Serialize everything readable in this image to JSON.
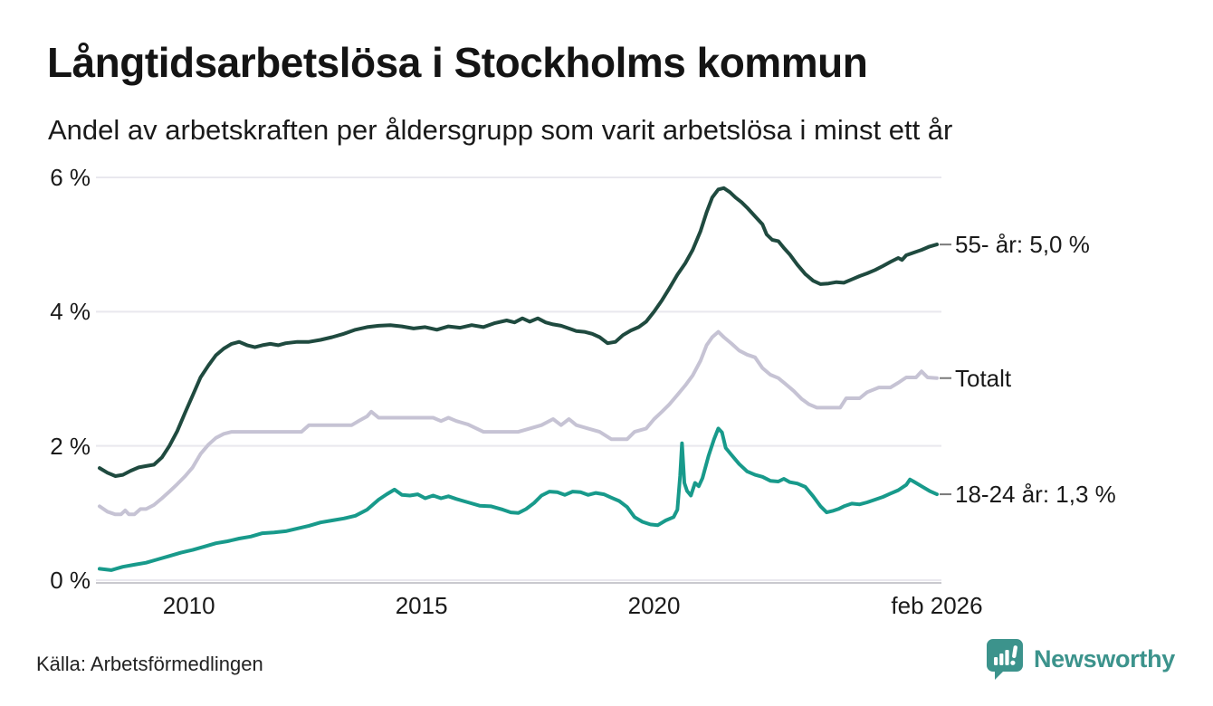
{
  "header": {
    "title": "Långtidsarbetslösa i Stockholms kommun",
    "subtitle": "Andel av arbetskraften per åldersgrupp som varit arbetslösa i minst ett år"
  },
  "chart_data": {
    "type": "line",
    "unit": "%",
    "xlim": [
      2008.08,
      2026.08
    ],
    "ylim": [
      0,
      6.2
    ],
    "grid": "horizontal",
    "grid_color": "#e9e8ee",
    "axis_line_color": "#c9c9ce",
    "label_dash_color": "#7a7a7a",
    "y_ticks": [
      {
        "label": "0 %",
        "value": 0
      },
      {
        "label": "2 %",
        "value": 2
      },
      {
        "label": "4 %",
        "value": 4
      },
      {
        "label": "6 %",
        "value": 6
      }
    ],
    "x_ticks": [
      {
        "label": "2010",
        "year": 2010
      },
      {
        "label": "2015",
        "year": 2015
      },
      {
        "label": "2020",
        "year": 2020
      },
      {
        "label": "feb 2026",
        "year": 2026.08
      }
    ],
    "series": [
      {
        "name": "55- år",
        "end_label": "55- år: 5,0 %",
        "latest_value": "5,0 %",
        "color": "#1f4a3f",
        "points": [
          [
            2008.08,
            1.67
          ],
          [
            2008.25,
            1.6
          ],
          [
            2008.42,
            1.55
          ],
          [
            2008.58,
            1.57
          ],
          [
            2008.75,
            1.63
          ],
          [
            2008.92,
            1.68
          ],
          [
            2009.08,
            1.7
          ],
          [
            2009.25,
            1.72
          ],
          [
            2009.42,
            1.83
          ],
          [
            2009.58,
            2.0
          ],
          [
            2009.75,
            2.22
          ],
          [
            2009.92,
            2.5
          ],
          [
            2010.08,
            2.75
          ],
          [
            2010.25,
            3.02
          ],
          [
            2010.42,
            3.2
          ],
          [
            2010.58,
            3.35
          ],
          [
            2010.75,
            3.45
          ],
          [
            2010.92,
            3.52
          ],
          [
            2011.08,
            3.55
          ],
          [
            2011.25,
            3.5
          ],
          [
            2011.42,
            3.47
          ],
          [
            2011.58,
            3.5
          ],
          [
            2011.75,
            3.52
          ],
          [
            2011.92,
            3.5
          ],
          [
            2012.08,
            3.53
          ],
          [
            2012.33,
            3.55
          ],
          [
            2012.58,
            3.55
          ],
          [
            2012.83,
            3.58
          ],
          [
            2013.08,
            3.62
          ],
          [
            2013.33,
            3.67
          ],
          [
            2013.58,
            3.73
          ],
          [
            2013.83,
            3.77
          ],
          [
            2014.08,
            3.79
          ],
          [
            2014.33,
            3.8
          ],
          [
            2014.58,
            3.78
          ],
          [
            2014.83,
            3.75
          ],
          [
            2015.08,
            3.77
          ],
          [
            2015.33,
            3.73
          ],
          [
            2015.58,
            3.78
          ],
          [
            2015.83,
            3.76
          ],
          [
            2016.08,
            3.8
          ],
          [
            2016.33,
            3.77
          ],
          [
            2016.58,
            3.83
          ],
          [
            2016.83,
            3.87
          ],
          [
            2017.0,
            3.84
          ],
          [
            2017.17,
            3.9
          ],
          [
            2017.33,
            3.85
          ],
          [
            2017.5,
            3.9
          ],
          [
            2017.67,
            3.84
          ],
          [
            2017.83,
            3.81
          ],
          [
            2018.0,
            3.79
          ],
          [
            2018.17,
            3.75
          ],
          [
            2018.33,
            3.71
          ],
          [
            2018.5,
            3.7
          ],
          [
            2018.67,
            3.67
          ],
          [
            2018.83,
            3.62
          ],
          [
            2019.0,
            3.53
          ],
          [
            2019.17,
            3.55
          ],
          [
            2019.33,
            3.65
          ],
          [
            2019.5,
            3.72
          ],
          [
            2019.67,
            3.77
          ],
          [
            2019.83,
            3.85
          ],
          [
            2020.0,
            4.0
          ],
          [
            2020.17,
            4.17
          ],
          [
            2020.33,
            4.35
          ],
          [
            2020.5,
            4.55
          ],
          [
            2020.67,
            4.72
          ],
          [
            2020.83,
            4.92
          ],
          [
            2021.0,
            5.2
          ],
          [
            2021.13,
            5.48
          ],
          [
            2021.25,
            5.7
          ],
          [
            2021.38,
            5.82
          ],
          [
            2021.5,
            5.84
          ],
          [
            2021.63,
            5.78
          ],
          [
            2021.75,
            5.7
          ],
          [
            2021.88,
            5.63
          ],
          [
            2022.0,
            5.55
          ],
          [
            2022.17,
            5.42
          ],
          [
            2022.33,
            5.3
          ],
          [
            2022.42,
            5.15
          ],
          [
            2022.54,
            5.07
          ],
          [
            2022.67,
            5.05
          ],
          [
            2022.79,
            4.95
          ],
          [
            2022.92,
            4.85
          ],
          [
            2023.08,
            4.7
          ],
          [
            2023.25,
            4.56
          ],
          [
            2023.42,
            4.46
          ],
          [
            2023.58,
            4.41
          ],
          [
            2023.75,
            4.42
          ],
          [
            2023.92,
            4.44
          ],
          [
            2024.08,
            4.43
          ],
          [
            2024.25,
            4.48
          ],
          [
            2024.42,
            4.53
          ],
          [
            2024.58,
            4.57
          ],
          [
            2024.75,
            4.62
          ],
          [
            2024.92,
            4.68
          ],
          [
            2025.08,
            4.74
          ],
          [
            2025.25,
            4.8
          ],
          [
            2025.33,
            4.77
          ],
          [
            2025.42,
            4.84
          ],
          [
            2025.58,
            4.88
          ],
          [
            2025.75,
            4.92
          ],
          [
            2025.92,
            4.97
          ],
          [
            2026.08,
            5.0
          ]
        ]
      },
      {
        "name": "Totalt",
        "end_label": "Totalt",
        "latest_value": "3,0 %",
        "color": "#c6c3d4",
        "points": [
          [
            2008.08,
            1.1
          ],
          [
            2008.25,
            1.02
          ],
          [
            2008.42,
            0.98
          ],
          [
            2008.54,
            0.98
          ],
          [
            2008.63,
            1.04
          ],
          [
            2008.71,
            0.98
          ],
          [
            2008.83,
            0.98
          ],
          [
            2008.96,
            1.06
          ],
          [
            2009.08,
            1.06
          ],
          [
            2009.25,
            1.12
          ],
          [
            2009.42,
            1.22
          ],
          [
            2009.58,
            1.32
          ],
          [
            2009.75,
            1.43
          ],
          [
            2009.92,
            1.55
          ],
          [
            2010.08,
            1.68
          ],
          [
            2010.25,
            1.88
          ],
          [
            2010.42,
            2.02
          ],
          [
            2010.58,
            2.12
          ],
          [
            2010.75,
            2.18
          ],
          [
            2010.92,
            2.21
          ],
          [
            2011.5,
            2.21
          ],
          [
            2012.42,
            2.21
          ],
          [
            2012.58,
            2.31
          ],
          [
            2013.5,
            2.31
          ],
          [
            2013.67,
            2.38
          ],
          [
            2013.83,
            2.44
          ],
          [
            2013.92,
            2.51
          ],
          [
            2014.08,
            2.42
          ],
          [
            2015.25,
            2.42
          ],
          [
            2015.42,
            2.37
          ],
          [
            2015.58,
            2.42
          ],
          [
            2015.75,
            2.37
          ],
          [
            2016.0,
            2.32
          ],
          [
            2016.33,
            2.21
          ],
          [
            2017.08,
            2.21
          ],
          [
            2017.33,
            2.26
          ],
          [
            2017.58,
            2.31
          ],
          [
            2017.83,
            2.4
          ],
          [
            2018.0,
            2.31
          ],
          [
            2018.17,
            2.4
          ],
          [
            2018.33,
            2.31
          ],
          [
            2018.58,
            2.26
          ],
          [
            2018.83,
            2.21
          ],
          [
            2019.08,
            2.1
          ],
          [
            2019.42,
            2.1
          ],
          [
            2019.58,
            2.21
          ],
          [
            2019.83,
            2.26
          ],
          [
            2020.0,
            2.4
          ],
          [
            2020.17,
            2.51
          ],
          [
            2020.33,
            2.62
          ],
          [
            2020.5,
            2.76
          ],
          [
            2020.67,
            2.9
          ],
          [
            2020.83,
            3.05
          ],
          [
            2021.0,
            3.27
          ],
          [
            2021.13,
            3.5
          ],
          [
            2021.25,
            3.62
          ],
          [
            2021.38,
            3.7
          ],
          [
            2021.5,
            3.62
          ],
          [
            2021.67,
            3.52
          ],
          [
            2021.83,
            3.42
          ],
          [
            2022.0,
            3.36
          ],
          [
            2022.17,
            3.32
          ],
          [
            2022.33,
            3.16
          ],
          [
            2022.5,
            3.06
          ],
          [
            2022.67,
            3.01
          ],
          [
            2022.83,
            2.92
          ],
          [
            2023.0,
            2.82
          ],
          [
            2023.17,
            2.7
          ],
          [
            2023.33,
            2.62
          ],
          [
            2023.5,
            2.57
          ],
          [
            2024.0,
            2.57
          ],
          [
            2024.13,
            2.71
          ],
          [
            2024.42,
            2.71
          ],
          [
            2024.58,
            2.8
          ],
          [
            2024.83,
            2.87
          ],
          [
            2025.08,
            2.87
          ],
          [
            2025.25,
            2.94
          ],
          [
            2025.42,
            3.02
          ],
          [
            2025.63,
            3.02
          ],
          [
            2025.75,
            3.11
          ],
          [
            2025.88,
            3.02
          ],
          [
            2026.08,
            3.01
          ]
        ]
      },
      {
        "name": "18-24 år",
        "end_label": "18-24 år: 1,3 %",
        "latest_value": "1,3 %",
        "color": "#189a8b",
        "points": [
          [
            2008.08,
            0.17
          ],
          [
            2008.33,
            0.15
          ],
          [
            2008.58,
            0.2
          ],
          [
            2008.83,
            0.23
          ],
          [
            2009.08,
            0.26
          ],
          [
            2009.33,
            0.31
          ],
          [
            2009.58,
            0.36
          ],
          [
            2009.83,
            0.41
          ],
          [
            2010.08,
            0.45
          ],
          [
            2010.33,
            0.5
          ],
          [
            2010.58,
            0.55
          ],
          [
            2010.83,
            0.58
          ],
          [
            2011.08,
            0.62
          ],
          [
            2011.33,
            0.65
          ],
          [
            2011.58,
            0.7
          ],
          [
            2011.83,
            0.71
          ],
          [
            2012.08,
            0.73
          ],
          [
            2012.33,
            0.77
          ],
          [
            2012.58,
            0.81
          ],
          [
            2012.83,
            0.86
          ],
          [
            2013.08,
            0.89
          ],
          [
            2013.33,
            0.92
          ],
          [
            2013.58,
            0.96
          ],
          [
            2013.83,
            1.05
          ],
          [
            2014.08,
            1.2
          ],
          [
            2014.25,
            1.28
          ],
          [
            2014.42,
            1.35
          ],
          [
            2014.58,
            1.27
          ],
          [
            2014.75,
            1.26
          ],
          [
            2014.92,
            1.28
          ],
          [
            2015.08,
            1.22
          ],
          [
            2015.25,
            1.26
          ],
          [
            2015.42,
            1.22
          ],
          [
            2015.58,
            1.25
          ],
          [
            2015.75,
            1.21
          ],
          [
            2016.0,
            1.16
          ],
          [
            2016.25,
            1.11
          ],
          [
            2016.5,
            1.1
          ],
          [
            2016.75,
            1.05
          ],
          [
            2016.92,
            1.01
          ],
          [
            2017.08,
            1.0
          ],
          [
            2017.25,
            1.06
          ],
          [
            2017.42,
            1.15
          ],
          [
            2017.58,
            1.26
          ],
          [
            2017.75,
            1.32
          ],
          [
            2017.92,
            1.31
          ],
          [
            2018.08,
            1.27
          ],
          [
            2018.25,
            1.32
          ],
          [
            2018.42,
            1.31
          ],
          [
            2018.58,
            1.27
          ],
          [
            2018.75,
            1.3
          ],
          [
            2018.92,
            1.28
          ],
          [
            2019.08,
            1.23
          ],
          [
            2019.25,
            1.18
          ],
          [
            2019.42,
            1.09
          ],
          [
            2019.58,
            0.94
          ],
          [
            2019.75,
            0.87
          ],
          [
            2019.92,
            0.83
          ],
          [
            2020.08,
            0.82
          ],
          [
            2020.25,
            0.89
          ],
          [
            2020.42,
            0.94
          ],
          [
            2020.5,
            1.05
          ],
          [
            2020.56,
            1.55
          ],
          [
            2020.6,
            2.04
          ],
          [
            2020.65,
            1.45
          ],
          [
            2020.71,
            1.33
          ],
          [
            2020.79,
            1.26
          ],
          [
            2020.88,
            1.45
          ],
          [
            2020.96,
            1.4
          ],
          [
            2021.04,
            1.52
          ],
          [
            2021.17,
            1.85
          ],
          [
            2021.29,
            2.1
          ],
          [
            2021.38,
            2.26
          ],
          [
            2021.46,
            2.2
          ],
          [
            2021.54,
            1.97
          ],
          [
            2021.67,
            1.86
          ],
          [
            2021.83,
            1.73
          ],
          [
            2022.0,
            1.62
          ],
          [
            2022.17,
            1.57
          ],
          [
            2022.33,
            1.54
          ],
          [
            2022.5,
            1.48
          ],
          [
            2022.67,
            1.47
          ],
          [
            2022.79,
            1.51
          ],
          [
            2022.92,
            1.46
          ],
          [
            2023.08,
            1.44
          ],
          [
            2023.25,
            1.39
          ],
          [
            2023.42,
            1.25
          ],
          [
            2023.58,
            1.1
          ],
          [
            2023.71,
            1.01
          ],
          [
            2023.83,
            1.03
          ],
          [
            2023.96,
            1.06
          ],
          [
            2024.08,
            1.1
          ],
          [
            2024.25,
            1.14
          ],
          [
            2024.42,
            1.13
          ],
          [
            2024.58,
            1.16
          ],
          [
            2024.75,
            1.2
          ],
          [
            2024.92,
            1.24
          ],
          [
            2025.08,
            1.29
          ],
          [
            2025.25,
            1.34
          ],
          [
            2025.42,
            1.42
          ],
          [
            2025.5,
            1.5
          ],
          [
            2025.58,
            1.47
          ],
          [
            2025.75,
            1.4
          ],
          [
            2025.92,
            1.33
          ],
          [
            2026.08,
            1.28
          ]
        ]
      }
    ]
  },
  "footer": {
    "source": "Källa: Arbetsförmedlingen",
    "brand": "Newsworthy",
    "brand_color": "#3c938c",
    "logo_icon": "bar-chart-speech-bubble"
  }
}
